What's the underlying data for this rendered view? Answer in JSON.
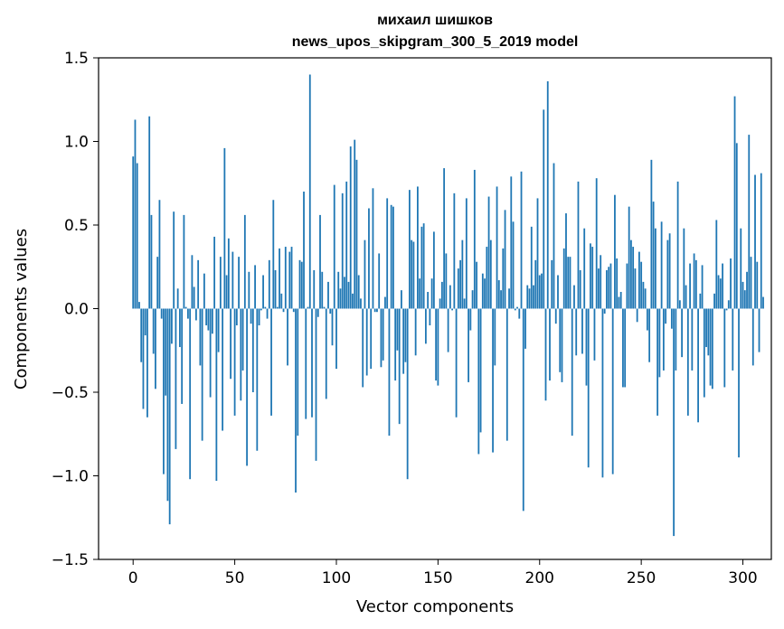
{
  "chart_data": {
    "type": "bar",
    "title_line1": "михаил шишков",
    "title_line2": "news_upos_skipgram_300_5_2019 model",
    "xlabel": "Vector components",
    "ylabel": "Components values",
    "xlim": [
      -17,
      314
    ],
    "ylim": [
      -1.5,
      1.5
    ],
    "xticks": [
      0,
      50,
      100,
      150,
      200,
      250,
      300
    ],
    "xtick_labels": [
      "0",
      "50",
      "100",
      "150",
      "200",
      "250",
      "300"
    ],
    "yticks": [
      -1.5,
      -1.0,
      -0.5,
      0.0,
      0.5,
      1.0,
      1.5
    ],
    "ytick_labels": [
      "−1.5",
      "−1.0",
      "−0.5",
      "0.0",
      "0.5",
      "1.0",
      "1.5"
    ],
    "bar_color": "#1f77b4",
    "x_start": 0,
    "values": [
      0.91,
      1.13,
      0.87,
      0.04,
      -0.32,
      -0.6,
      -0.16,
      -0.65,
      1.15,
      0.56,
      -0.27,
      -0.48,
      0.31,
      0.65,
      -0.06,
      -0.99,
      -0.52,
      -1.15,
      -1.29,
      -0.21,
      0.58,
      -0.84,
      0.12,
      -0.23,
      -0.57,
      0.56,
      0.01,
      -0.06,
      -1.02,
      0.32,
      0.13,
      -0.07,
      0.29,
      -0.34,
      -0.79,
      0.21,
      -0.1,
      -0.13,
      -0.53,
      -0.15,
      0.43,
      -1.03,
      -0.26,
      0.31,
      -0.73,
      0.96,
      0.2,
      0.42,
      -0.42,
      0.34,
      -0.64,
      -0.1,
      0.31,
      -0.55,
      -0.37,
      0.56,
      -0.94,
      0.22,
      -0.09,
      -0.5,
      0.26,
      -0.85,
      -0.1,
      -0.01,
      0.2,
      0.01,
      -0.06,
      0.29,
      -0.64,
      0.65,
      0.23,
      0.01,
      0.36,
      0.09,
      -0.02,
      0.37,
      -0.34,
      0.34,
      0.37,
      -0.02,
      -1.1,
      -0.76,
      0.29,
      0.28,
      0.7,
      -0.66,
      0.01,
      1.4,
      -0.65,
      0.23,
      -0.91,
      -0.05,
      0.56,
      0.22,
      0.01,
      -0.54,
      0.16,
      -0.03,
      -0.22,
      0.74,
      -0.36,
      0.22,
      0.12,
      0.69,
      0.19,
      0.76,
      0.16,
      0.97,
      0.09,
      1.01,
      0.89,
      0.2,
      0.06,
      -0.47,
      0.41,
      -0.4,
      0.6,
      -0.36,
      0.72,
      -0.02,
      -0.02,
      0.33,
      -0.35,
      -0.31,
      0.07,
      0.66,
      -0.76,
      0.62,
      0.61,
      -0.43,
      -0.25,
      -0.69,
      0.11,
      -0.39,
      -0.32,
      -1.02,
      0.71,
      0.41,
      0.4,
      -0.28,
      0.73,
      0.18,
      0.49,
      0.51,
      -0.21,
      0.1,
      -0.1,
      0.18,
      0.46,
      -0.43,
      -0.46,
      0.06,
      0.16,
      0.84,
      0.33,
      -0.26,
      0.14,
      -0.01,
      0.69,
      -0.65,
      0.24,
      0.29,
      0.41,
      0.06,
      0.66,
      -0.44,
      -0.13,
      0.11,
      0.83,
      0.28,
      -0.87,
      -0.74,
      0.21,
      0.18,
      0.37,
      0.67,
      0.41,
      -0.86,
      -0.34,
      0.73,
      0.17,
      0.11,
      0.36,
      0.59,
      -0.79,
      0.12,
      0.79,
      0.52,
      -0.01,
      0.01,
      -0.06,
      0.82,
      -1.21,
      -0.24,
      0.14,
      0.12,
      0.49,
      0.14,
      0.29,
      0.66,
      0.2,
      0.21,
      1.19,
      -0.55,
      1.36,
      -0.43,
      0.29,
      0.87,
      -0.09,
      0.2,
      -0.38,
      -0.44,
      0.36,
      0.57,
      0.31,
      0.31,
      -0.76,
      0.14,
      -0.28,
      0.76,
      0.23,
      -0.27,
      0.48,
      -0.46,
      -0.95,
      0.39,
      0.37,
      -0.31,
      0.78,
      0.24,
      0.32,
      -1.01,
      -0.03,
      0.23,
      0.25,
      0.27,
      -0.99,
      0.68,
      0.3,
      0.07,
      0.1,
      -0.47,
      -0.47,
      0.27,
      0.61,
      0.41,
      0.37,
      0.24,
      -0.08,
      0.34,
      0.28,
      0.16,
      0.12,
      -0.13,
      -0.32,
      0.89,
      0.64,
      0.48,
      -0.64,
      -0.41,
      0.52,
      -0.37,
      -0.09,
      0.41,
      0.45,
      -0.12,
      -1.36,
      -0.37,
      0.76,
      0.05,
      -0.29,
      0.48,
      0.14,
      -0.64,
      0.27,
      -0.37,
      0.33,
      0.29,
      -0.68,
      0.09,
      0.26,
      -0.53,
      -0.23,
      -0.28,
      -0.46,
      -0.48,
      0.09,
      0.53,
      0.2,
      0.18,
      0.27,
      -0.47,
      -0.01,
      0.05,
      0.3,
      -0.37,
      1.27,
      0.99,
      -0.89,
      0.48,
      0.16,
      0.11,
      0.22,
      1.04,
      0.31,
      -0.34,
      0.8,
      0.28,
      -0.26,
      0.81,
      0.07
    ]
  }
}
